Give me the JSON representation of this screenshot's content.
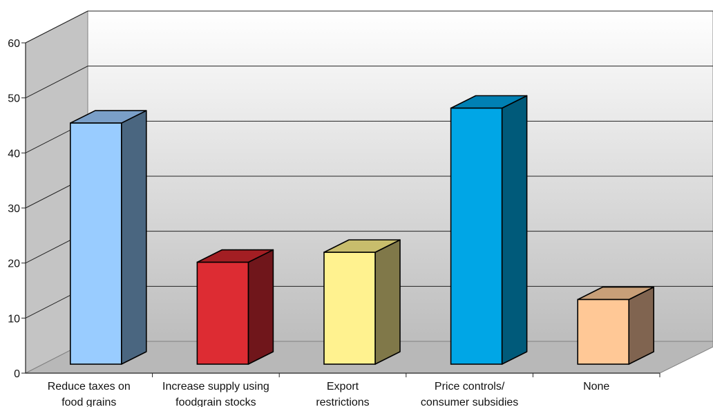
{
  "chart_data": {
    "type": "bar",
    "style": "3d",
    "categories": [
      [
        "Reduce taxes on",
        "food grains"
      ],
      [
        "Increase supply using",
        "foodgrain stocks"
      ],
      [
        "Export",
        "restrictions"
      ],
      [
        "Price controls/",
        "consumer subsidies"
      ],
      [
        "None"
      ]
    ],
    "values": [
      48.5,
      20.5,
      22.5,
      51.5,
      13
    ],
    "yticks": [
      0,
      10,
      20,
      30,
      40,
      50,
      60
    ],
    "ylim": [
      0,
      60
    ],
    "grid": true,
    "legend": "none",
    "colors": [
      {
        "front": "#99ccff",
        "top": "#7a9fc8",
        "side": "#4a6680"
      },
      {
        "front": "#dd2c33",
        "top": "#a31e23",
        "side": "#70161b"
      },
      {
        "front": "#fff28f",
        "top": "#c8bd6c",
        "side": "#807849"
      },
      {
        "front": "#00a6e6",
        "top": "#0080b3",
        "side": "#005a7a"
      },
      {
        "front": "#ffc896",
        "top": "#c89f78",
        "side": "#806450"
      }
    ]
  }
}
